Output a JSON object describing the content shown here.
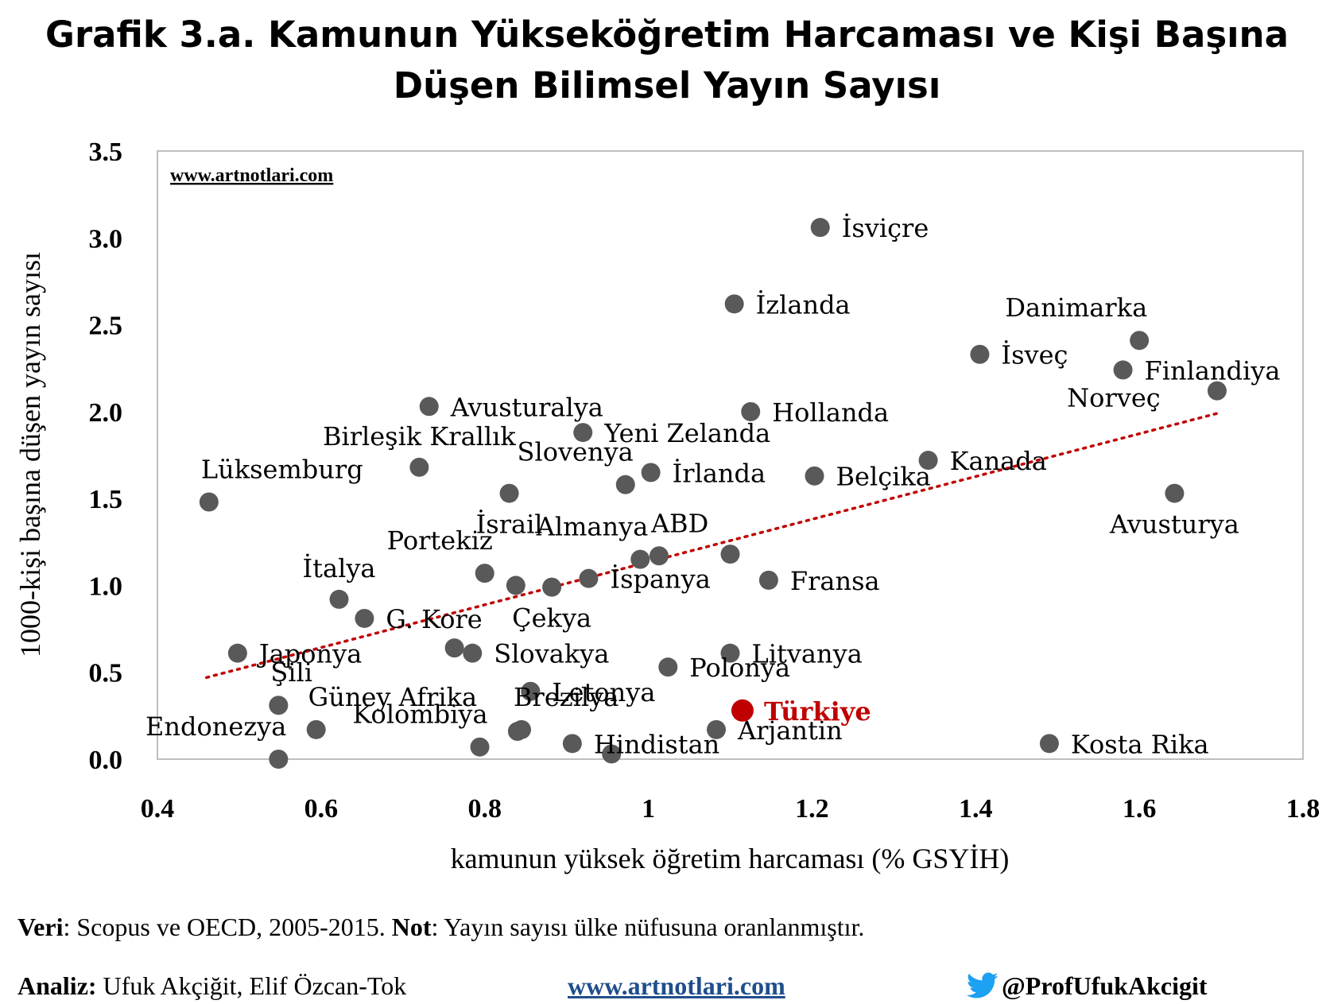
{
  "title": {
    "line1": "Grafik 3.a. Kamunun Yükseköğretim Harcaması ve Kişi Başına",
    "line2": "Düşen Bilimsel Yayın Sayısı"
  },
  "watermark": "www.artnotlari.com",
  "footer": {
    "veri_label": "Veri",
    "veri_text": ": Scopus ve OECD, 2005-2015. ",
    "not_label": "Not",
    "not_text": ": Yayın sayısı ülke nüfusuna oranlanmıştır.",
    "analiz_label": "Analiz:",
    "analiz_text": " Ufuk Akçiğit, Elif Özcan-Tok",
    "link": "www.artnotlari.com",
    "twitter": "@ProfUfukAkcigit"
  },
  "colors": {
    "point": "#595959",
    "highlight": "#c00000",
    "trend": "#c00000",
    "twitter": "#1da1f2"
  },
  "chart_data": {
    "type": "scatter",
    "xlabel": "kamunun yüksek öğretim harcaması (% GSYİH)",
    "ylabel": "1000-kişi başına düşen yayın sayısı",
    "xlim": [
      0.4,
      1.8
    ],
    "ylim": [
      0.0,
      3.5
    ],
    "xticks": [
      {
        "value": 0.4,
        "label": "0.4"
      },
      {
        "value": 0.6,
        "label": "0.6"
      },
      {
        "value": 0.8,
        "label": "0.8"
      },
      {
        "value": 1.0,
        "label": "1"
      },
      {
        "value": 1.2,
        "label": "1.2"
      },
      {
        "value": 1.4,
        "label": "1.4"
      },
      {
        "value": 1.6,
        "label": "1.6"
      },
      {
        "value": 1.8,
        "label": "1.8"
      }
    ],
    "yticks": [
      {
        "value": 0.0,
        "label": "0.0"
      },
      {
        "value": 0.5,
        "label": "0.5"
      },
      {
        "value": 1.0,
        "label": "1.0"
      },
      {
        "value": 1.5,
        "label": "1.5"
      },
      {
        "value": 2.0,
        "label": "2.0"
      },
      {
        "value": 2.5,
        "label": "2.5"
      },
      {
        "value": 3.0,
        "label": "3.0"
      },
      {
        "value": 3.5,
        "label": "3.5"
      }
    ],
    "grid": false,
    "trendline": {
      "x": [
        0.46,
        1.695
      ],
      "y": [
        0.47,
        1.99
      ]
    },
    "points": [
      {
        "label": "İsviçre",
        "x": 1.21,
        "y": 3.06,
        "pos": "r"
      },
      {
        "label": "İzlanda",
        "x": 1.105,
        "y": 2.62,
        "pos": "r"
      },
      {
        "label": "Danimarka",
        "x": 1.6,
        "y": 2.41,
        "pos": "tl"
      },
      {
        "label": "İsveç",
        "x": 1.405,
        "y": 2.33,
        "pos": "r"
      },
      {
        "label": "Finlandiya",
        "x": 1.58,
        "y": 2.24,
        "pos": "r"
      },
      {
        "label": "Norveç",
        "x": 1.695,
        "y": 2.12,
        "pos": "norvec"
      },
      {
        "label": "Avusturalya",
        "x": 0.732,
        "y": 2.03,
        "pos": "r"
      },
      {
        "label": "Hollanda",
        "x": 1.125,
        "y": 2.0,
        "pos": "r"
      },
      {
        "label": "Yeni Zelanda",
        "x": 0.92,
        "y": 1.88,
        "pos": "r"
      },
      {
        "label": "Kanada",
        "x": 1.342,
        "y": 1.72,
        "pos": "r"
      },
      {
        "label": "Birleşik Krallık",
        "x": 0.72,
        "y": 1.68,
        "pos": "t"
      },
      {
        "label": "Slovenya",
        "x": 0.972,
        "y": 1.58,
        "pos": "tl"
      },
      {
        "label": "İrlanda",
        "x": 1.003,
        "y": 1.65,
        "pos": "r"
      },
      {
        "label": "Belçika",
        "x": 1.203,
        "y": 1.63,
        "pos": "r"
      },
      {
        "label": "Lüksemburg",
        "x": 0.463,
        "y": 1.48,
        "pos": "tr"
      },
      {
        "label": "İsrail",
        "x": 0.83,
        "y": 1.53,
        "pos": "b"
      },
      {
        "label": "Avusturya",
        "x": 1.643,
        "y": 1.53,
        "pos": "b"
      },
      {
        "label": "ABD",
        "x": 1.013,
        "y": 1.17,
        "pos": "tr"
      },
      {
        "label": "Almanya",
        "x": 0.99,
        "y": 1.15,
        "pos": "tl"
      },
      {
        "label": "",
        "x": 1.1,
        "y": 1.18,
        "pos": "none"
      },
      {
        "label": "Portekiz",
        "x": 0.8,
        "y": 1.07,
        "pos": "tl"
      },
      {
        "label": "İspanya",
        "x": 0.927,
        "y": 1.04,
        "pos": "r"
      },
      {
        "label": "Fransa",
        "x": 1.147,
        "y": 1.03,
        "pos": "r"
      },
      {
        "label": "",
        "x": 0.838,
        "y": 1.0,
        "pos": "none"
      },
      {
        "label": "Çekya",
        "x": 0.882,
        "y": 0.99,
        "pos": "b"
      },
      {
        "label": "İtalya",
        "x": 0.622,
        "y": 0.92,
        "pos": "t"
      },
      {
        "label": "G. Kore",
        "x": 0.653,
        "y": 0.81,
        "pos": "r"
      },
      {
        "label": "Japonya",
        "x": 0.498,
        "y": 0.61,
        "pos": "r"
      },
      {
        "label": "",
        "x": 0.763,
        "y": 0.64,
        "pos": "none"
      },
      {
        "label": "Slovakya",
        "x": 0.785,
        "y": 0.61,
        "pos": "r"
      },
      {
        "label": "Litvanya",
        "x": 1.1,
        "y": 0.61,
        "pos": "r"
      },
      {
        "label": "Polonya",
        "x": 1.024,
        "y": 0.53,
        "pos": "r"
      },
      {
        "label": "Şili",
        "x": 0.548,
        "y": 0.31,
        "pos": "tr"
      },
      {
        "label": "Letonya",
        "x": 0.856,
        "y": 0.39,
        "pos": "r"
      },
      {
        "label": "Türkiye",
        "x": 1.115,
        "y": 0.28,
        "pos": "r",
        "highlight": true
      },
      {
        "label": "Güney Afrika",
        "x": 0.594,
        "y": 0.17,
        "pos": "tr"
      },
      {
        "label": "Brezilya",
        "x": 0.845,
        "y": 0.17,
        "pos": "tr"
      },
      {
        "label": "",
        "x": 0.84,
        "y": 0.16,
        "pos": "none"
      },
      {
        "label": "Arjantin",
        "x": 1.083,
        "y": 0.17,
        "pos": "r"
      },
      {
        "label": "Endonezya",
        "x": 0.548,
        "y": 0.0,
        "pos": "tl"
      },
      {
        "label": "Kolombiya",
        "x": 0.794,
        "y": 0.07,
        "pos": "tl"
      },
      {
        "label": "Hindistan",
        "x": 0.907,
        "y": 0.09,
        "pos": "r"
      },
      {
        "label": "",
        "x": 0.955,
        "y": 0.03,
        "pos": "none"
      },
      {
        "label": "Kosta Rika",
        "x": 1.49,
        "y": 0.09,
        "pos": "r"
      }
    ]
  }
}
